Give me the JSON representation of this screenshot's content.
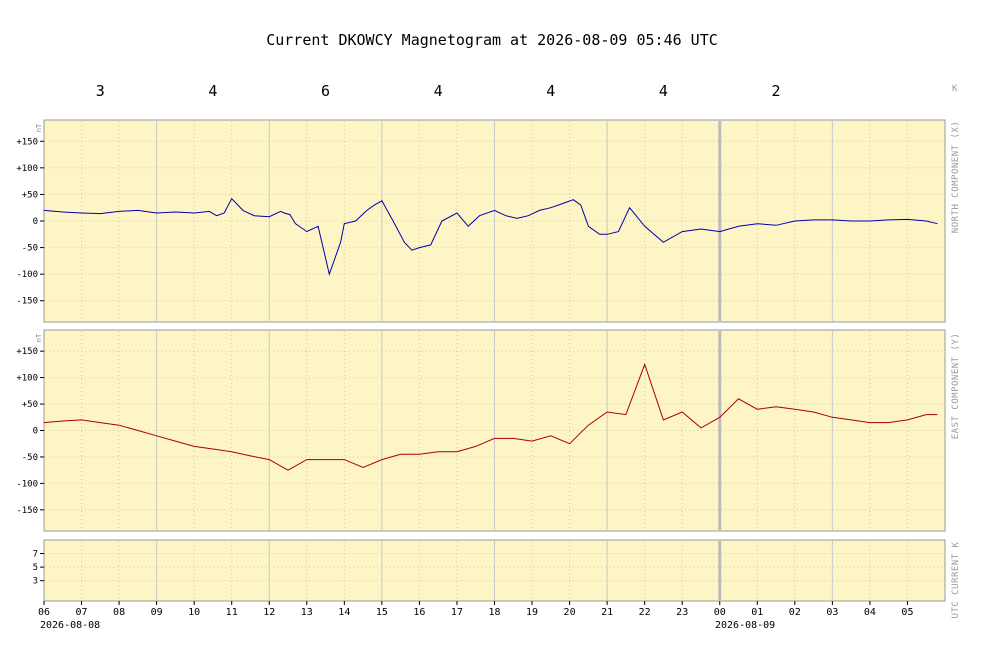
{
  "title": "Current DKOWCY Magnetogram at 2026-08-09 05:46 UTC",
  "k_axis_label": "K",
  "k_values": [
    "3",
    "4",
    "6",
    "4",
    "4",
    "4",
    "2"
  ],
  "panels": {
    "north": {
      "side_label": "NORTH COMPONENT (X)",
      "unit": "nT",
      "yticks": [
        "+150",
        "+100",
        "+50",
        "0",
        "-50",
        "-100",
        "-150"
      ]
    },
    "east": {
      "side_label": "EAST COMPONENT (Y)",
      "unit": "nT",
      "yticks": [
        "+150",
        "+100",
        "+50",
        "0",
        "-50",
        "-100",
        "-150"
      ]
    },
    "kpanel": {
      "side_label": "UTC CURRENT K",
      "yticks": [
        "7",
        "5",
        "3"
      ]
    }
  },
  "x_ticks": [
    "06",
    "07",
    "08",
    "09",
    "10",
    "11",
    "12",
    "13",
    "14",
    "15",
    "16",
    "17",
    "18",
    "19",
    "20",
    "21",
    "22",
    "23",
    "00",
    "01",
    "02",
    "03",
    "04",
    "05"
  ],
  "date_labels": {
    "start": "2026-08-08",
    "midnight": "2026-08-09"
  },
  "colors": {
    "panel_bg": "#fdf5c6",
    "grid": "#c8c8c8",
    "north_line": "#0000aa",
    "east_line": "#aa0000",
    "midnight_line": "#bbbbbb"
  },
  "chart_data": [
    {
      "type": "line",
      "title": "NORTH COMPONENT (X)",
      "ylabel": "nT",
      "ylim": [
        -190,
        190
      ],
      "x_units": "hours since 2026-08-08 06:00 UTC",
      "xlim": [
        0,
        24
      ],
      "series": [
        {
          "name": "NORTH COMPONENT (X)",
          "x": [
            0,
            0.5,
            1,
            1.5,
            2,
            2.5,
            3,
            3.5,
            4,
            4.4,
            4.6,
            4.8,
            5,
            5.3,
            5.6,
            6,
            6.3,
            6.4,
            6.55,
            6.7,
            7,
            7.3,
            7.6,
            7.9,
            8,
            8.3,
            8.6,
            8.8,
            9,
            9.3,
            9.6,
            9.8,
            10,
            10.3,
            10.6,
            11,
            11.3,
            11.6,
            12,
            12.3,
            12.6,
            12.9,
            13.2,
            13.5,
            13.7,
            13.9,
            14.1,
            14.3,
            14.5,
            14.8,
            15,
            15.3,
            15.6,
            16,
            16.5,
            17,
            17.5,
            18,
            18.5,
            19,
            19.5,
            20,
            20.5,
            21,
            21.5,
            22,
            22.5,
            23,
            23.5,
            23.8
          ],
          "y": [
            20,
            17,
            15,
            14,
            18,
            20,
            15,
            17,
            15,
            18,
            10,
            15,
            42,
            20,
            10,
            8,
            18,
            15,
            12,
            -5,
            -20,
            -10,
            -100,
            -40,
            -5,
            0,
            20,
            30,
            38,
            0,
            -40,
            -55,
            -50,
            -45,
            0,
            15,
            -10,
            10,
            20,
            10,
            5,
            10,
            20,
            25,
            30,
            35,
            40,
            30,
            -10,
            -25,
            -25,
            -20,
            25,
            -10,
            -40,
            -20,
            -15,
            -20,
            -10,
            -5,
            -8,
            0,
            2,
            2,
            0,
            0,
            2,
            3,
            0,
            -5
          ]
        }
      ]
    },
    {
      "type": "line",
      "title": "EAST COMPONENT (Y)",
      "ylabel": "nT",
      "ylim": [
        -190,
        190
      ],
      "x_units": "hours since 2026-08-08 06:00 UTC",
      "xlim": [
        0,
        24
      ],
      "series": [
        {
          "name": "EAST COMPONENT (Y)",
          "x": [
            0,
            0.5,
            1,
            1.5,
            2,
            2.5,
            3,
            3.5,
            4,
            4.5,
            5,
            5.5,
            6,
            6.5,
            7,
            7.5,
            8,
            8.5,
            9,
            9.5,
            10,
            10.5,
            11,
            11.5,
            12,
            12.5,
            13,
            13.5,
            14,
            14.5,
            15,
            15.5,
            16,
            16.5,
            17,
            17.5,
            18,
            18.5,
            19,
            19.5,
            20,
            20.5,
            21,
            21.5,
            22,
            22.5,
            23,
            23.5,
            23.8
          ],
          "y": [
            15,
            18,
            20,
            15,
            10,
            0,
            -10,
            -20,
            -30,
            -35,
            -40,
            -48,
            -55,
            -75,
            -55,
            -55,
            -55,
            -70,
            -55,
            -45,
            -45,
            -40,
            -40,
            -30,
            -15,
            -15,
            -20,
            -10,
            -25,
            10,
            35,
            30,
            125,
            20,
            35,
            5,
            25,
            60,
            40,
            45,
            40,
            35,
            25,
            20,
            15,
            15,
            20,
            30,
            30
          ]
        }
      ]
    },
    {
      "type": "bar",
      "title": "UTC CURRENT K",
      "ylim": [
        0,
        9
      ],
      "categories": [],
      "values": []
    }
  ]
}
